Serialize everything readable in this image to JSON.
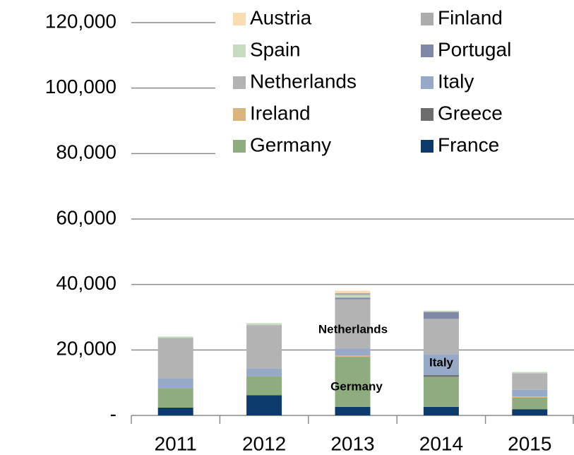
{
  "chart_data": {
    "type": "stacked_bar",
    "categories": [
      "2011",
      "2012",
      "2013",
      "2014",
      "2015"
    ],
    "series": [
      {
        "name": "France",
        "color": "#0b3a6b",
        "values": [
          2400,
          6200,
          2600,
          2600,
          1900
        ]
      },
      {
        "name": "Germany",
        "color": "#8fac7e",
        "values": [
          5800,
          5800,
          15300,
          9200,
          3500
        ]
      },
      {
        "name": "Greece",
        "color": "#6d6d6d",
        "values": [
          0,
          0,
          0,
          500,
          0
        ]
      },
      {
        "name": "Ireland",
        "color": "#d9b47d",
        "values": [
          0,
          0,
          400,
          0,
          400
        ]
      },
      {
        "name": "Italy",
        "color": "#96a9c6",
        "values": [
          3200,
          2400,
          2100,
          6400,
          2000
        ]
      },
      {
        "name": "Netherlands",
        "color": "#b3b3b3",
        "values": [
          12300,
          13200,
          15100,
          10800,
          5100
        ]
      },
      {
        "name": "Portugal",
        "color": "#8088a6",
        "values": [
          0,
          0,
          500,
          2100,
          0
        ]
      },
      {
        "name": "Spain",
        "color": "#c6dbc0",
        "values": [
          400,
          600,
          800,
          400,
          400
        ]
      },
      {
        "name": "Finland",
        "color": "#acacac",
        "values": [
          0,
          0,
          600,
          0,
          0
        ]
      },
      {
        "name": "Austria",
        "color": "#fbdcb0",
        "values": [
          0,
          0,
          700,
          0,
          0
        ]
      }
    ],
    "ylim": [
      0,
      120000
    ],
    "yticks": [
      {
        "value": 0,
        "label": "-"
      },
      {
        "value": 20000,
        "label": "20,000"
      },
      {
        "value": 40000,
        "label": "40,000"
      },
      {
        "value": 60000,
        "label": "60,000"
      },
      {
        "value": 80000,
        "label": "80,000"
      },
      {
        "value": 100000,
        "label": "100,000"
      },
      {
        "value": 120000,
        "label": "120,000"
      }
    ],
    "grid": true,
    "annotations": [
      "Netherlands",
      "Italy",
      "Germany"
    ]
  }
}
